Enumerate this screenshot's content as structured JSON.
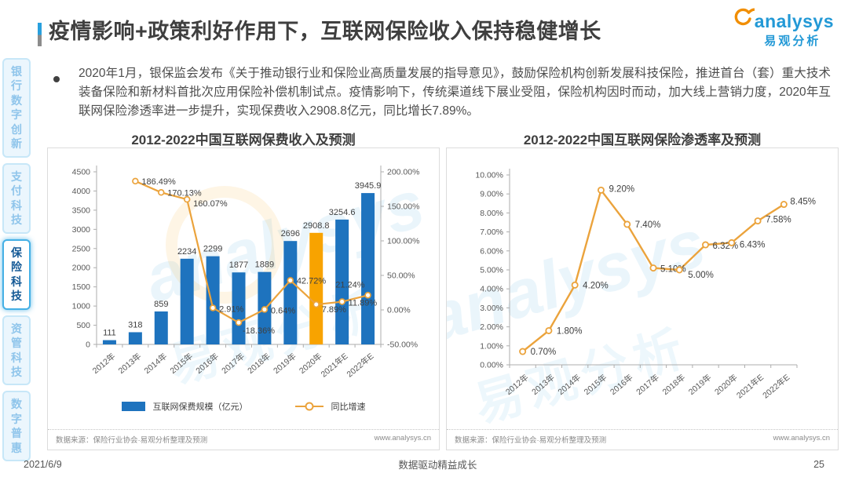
{
  "page": {
    "title": "疫情影响+政策利好作用下，互联网保险收入保持稳健增长",
    "date": "2021/6/9",
    "footer_slogan": "数据驱动精益成长",
    "page_number": "25",
    "logo": {
      "brand": "analysys",
      "brand_cn": "易观分析"
    }
  },
  "bullet": {
    "text": "2020年1月，银保监会发布《关于推动银行业和保险业高质量发展的指导意见》，鼓励保险机构创新发展科技保险，推进首台（套）重大技术装备保险和新材料首批次应用保险补偿机制试点。疫情影响下，传统渠道线下展业受阻，保险机构因时而动，加大线上营销力度，2020年互联网保险渗透率进一步提升，实现保费收入2908.8亿元，同比增长7.89%。"
  },
  "sidebar": {
    "items": [
      {
        "label": "银行数字创新",
        "active": false
      },
      {
        "label": "支付科技",
        "active": false
      },
      {
        "label": "保险科技",
        "active": true
      },
      {
        "label": "资管科技",
        "active": false
      },
      {
        "label": "数字普惠",
        "active": false
      }
    ]
  },
  "colors": {
    "bar": "#1E73BE",
    "bar_highlight": "#F8A300",
    "line": "#EBA33C",
    "accent_blue": "#29A0DE",
    "logo_blue": "#2399D6",
    "logo_orange": "#F18E00",
    "sidebar_active_text": "#155A96"
  },
  "chart_data": [
    {
      "type": "bar",
      "title": "2012-2022中国互联网保费收入及预测",
      "categories": [
        "2012年",
        "2013年",
        "2014年",
        "2015年",
        "2016年",
        "2017年",
        "2018年",
        "2019年",
        "2020年",
        "2021年E",
        "2022年E"
      ],
      "series": [
        {
          "name": "互联网保费规模（亿元）",
          "type": "bar",
          "axis": "left",
          "values": [
            111,
            318,
            859,
            2234,
            2299,
            1877,
            1889,
            2696,
            2908.8,
            3254.6,
            3945.9
          ],
          "labels": [
            "111",
            "318",
            "859",
            "2234",
            "2299",
            "1877",
            "1889",
            "2696",
            "2908.8",
            "3254.6",
            "3945.9"
          ],
          "highlight_category": "2020年"
        },
        {
          "name": "同比增速",
          "type": "line",
          "axis": "right",
          "values": [
            null,
            186.49,
            170.13,
            160.07,
            2.91,
            -18.36,
            0.64,
            42.72,
            7.89,
            11.89,
            21.24
          ],
          "labels": [
            null,
            "186.49%",
            "170.13%",
            "160.07%",
            "2.91%",
            "-18.36%",
            "0.64%",
            "42.72%",
            "7.89%",
            "11.89%",
            "21.24%"
          ]
        }
      ],
      "axes": {
        "left": {
          "min": 0,
          "max": 4500,
          "ticks": [
            "0",
            "500",
            "1000",
            "1500",
            "2000",
            "2500",
            "3000",
            "3500",
            "4000",
            "4500"
          ]
        },
        "right": {
          "min": -50,
          "max": 200,
          "ticks": [
            "-50.00%",
            "0.00%",
            "50.00%",
            "100.00%",
            "150.00%",
            "200.00%"
          ]
        }
      },
      "grid": false,
      "legend_position": "bottom",
      "source": "数据来源：保险行业协会·易观分析整理及预测",
      "source_url": "www.analysys.cn"
    },
    {
      "type": "line",
      "title": "2012-2022中国互联网保险渗透率及预测",
      "categories": [
        "2012年",
        "2013年",
        "2014年",
        "2015年",
        "2016年",
        "2017年",
        "2018年",
        "2019年",
        "2020年",
        "2021年E",
        "2022年E"
      ],
      "series": [
        {
          "name": "互联网保险渗透率",
          "type": "line",
          "axis": "left",
          "values": [
            0.7,
            1.8,
            4.2,
            9.2,
            7.4,
            5.1,
            5.0,
            6.32,
            6.43,
            7.58,
            8.45
          ],
          "labels": [
            "0.70%",
            "1.80%",
            "4.20%",
            "9.20%",
            "7.40%",
            "5.10%",
            "5.00%",
            "6.32%",
            "6.43%",
            "7.58%",
            "8.45%"
          ]
        }
      ],
      "axes": {
        "left": {
          "min": 0,
          "max": 10,
          "ticks": [
            "0.00%",
            "1.00%",
            "2.00%",
            "3.00%",
            "4.00%",
            "5.00%",
            "6.00%",
            "7.00%",
            "8.00%",
            "9.00%",
            "10.00%"
          ]
        }
      },
      "grid": false,
      "legend_position": "none",
      "source": "数据来源：保险行业协会·易观分析整理及预测",
      "source_url": "www.analysys.cn"
    }
  ]
}
